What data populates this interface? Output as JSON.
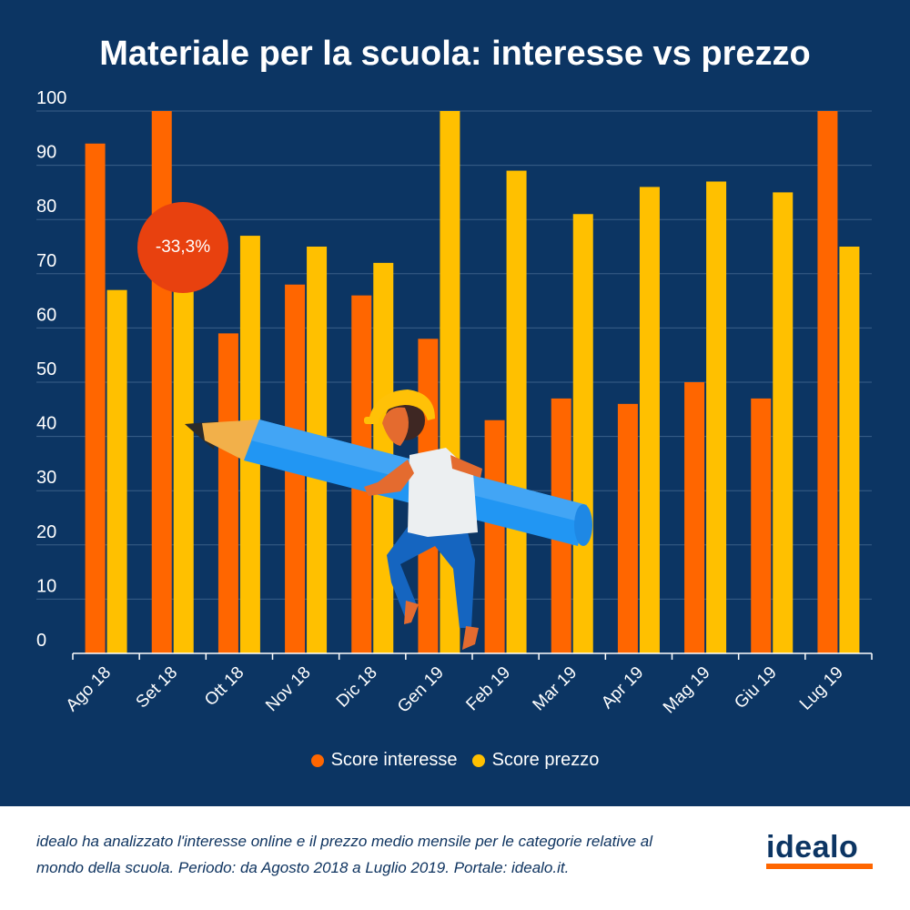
{
  "title": "Materiale per la scuola: interesse vs prezzo",
  "colors": {
    "background": "#0c3563",
    "interesse": "#ff6600",
    "prezzo": "#ffc000",
    "badge": "#e8410f",
    "grid": "#3a5f88"
  },
  "badge_label": "-33,3%",
  "footer": {
    "description": "idealo ha analizzato l'interesse online e il prezzo medio mensile per le categorie relative al mondo della scuola. Periodo: da Agosto 2018 a Luglio 2019. Portale: idealo.it.",
    "logo_text": "idealo"
  },
  "chart_data": {
    "type": "bar",
    "title": "Materiale per la scuola: interesse vs prezzo",
    "categories": [
      "Ago 18",
      "Set 18",
      "Ott 18",
      "Nov 18",
      "Dic 18",
      "Gen 19",
      "Feb 19",
      "Mar 19",
      "Apr 19",
      "Mag 19",
      "Giu 19",
      "Lug 19"
    ],
    "series": [
      {
        "name": "Score interesse",
        "values": [
          94,
          100,
          59,
          68,
          66,
          58,
          43,
          47,
          46,
          50,
          47,
          100
        ]
      },
      {
        "name": "Score prezzo",
        "values": [
          67,
          67,
          77,
          75,
          72,
          100,
          89,
          81,
          86,
          87,
          85,
          75
        ]
      }
    ],
    "yticks": [
      "0",
      "10",
      "20",
      "30",
      "40",
      "50",
      "60",
      "70",
      "80",
      "90",
      "100"
    ],
    "ylim": [
      0,
      100
    ],
    "grid": true,
    "legend": "bottom"
  }
}
